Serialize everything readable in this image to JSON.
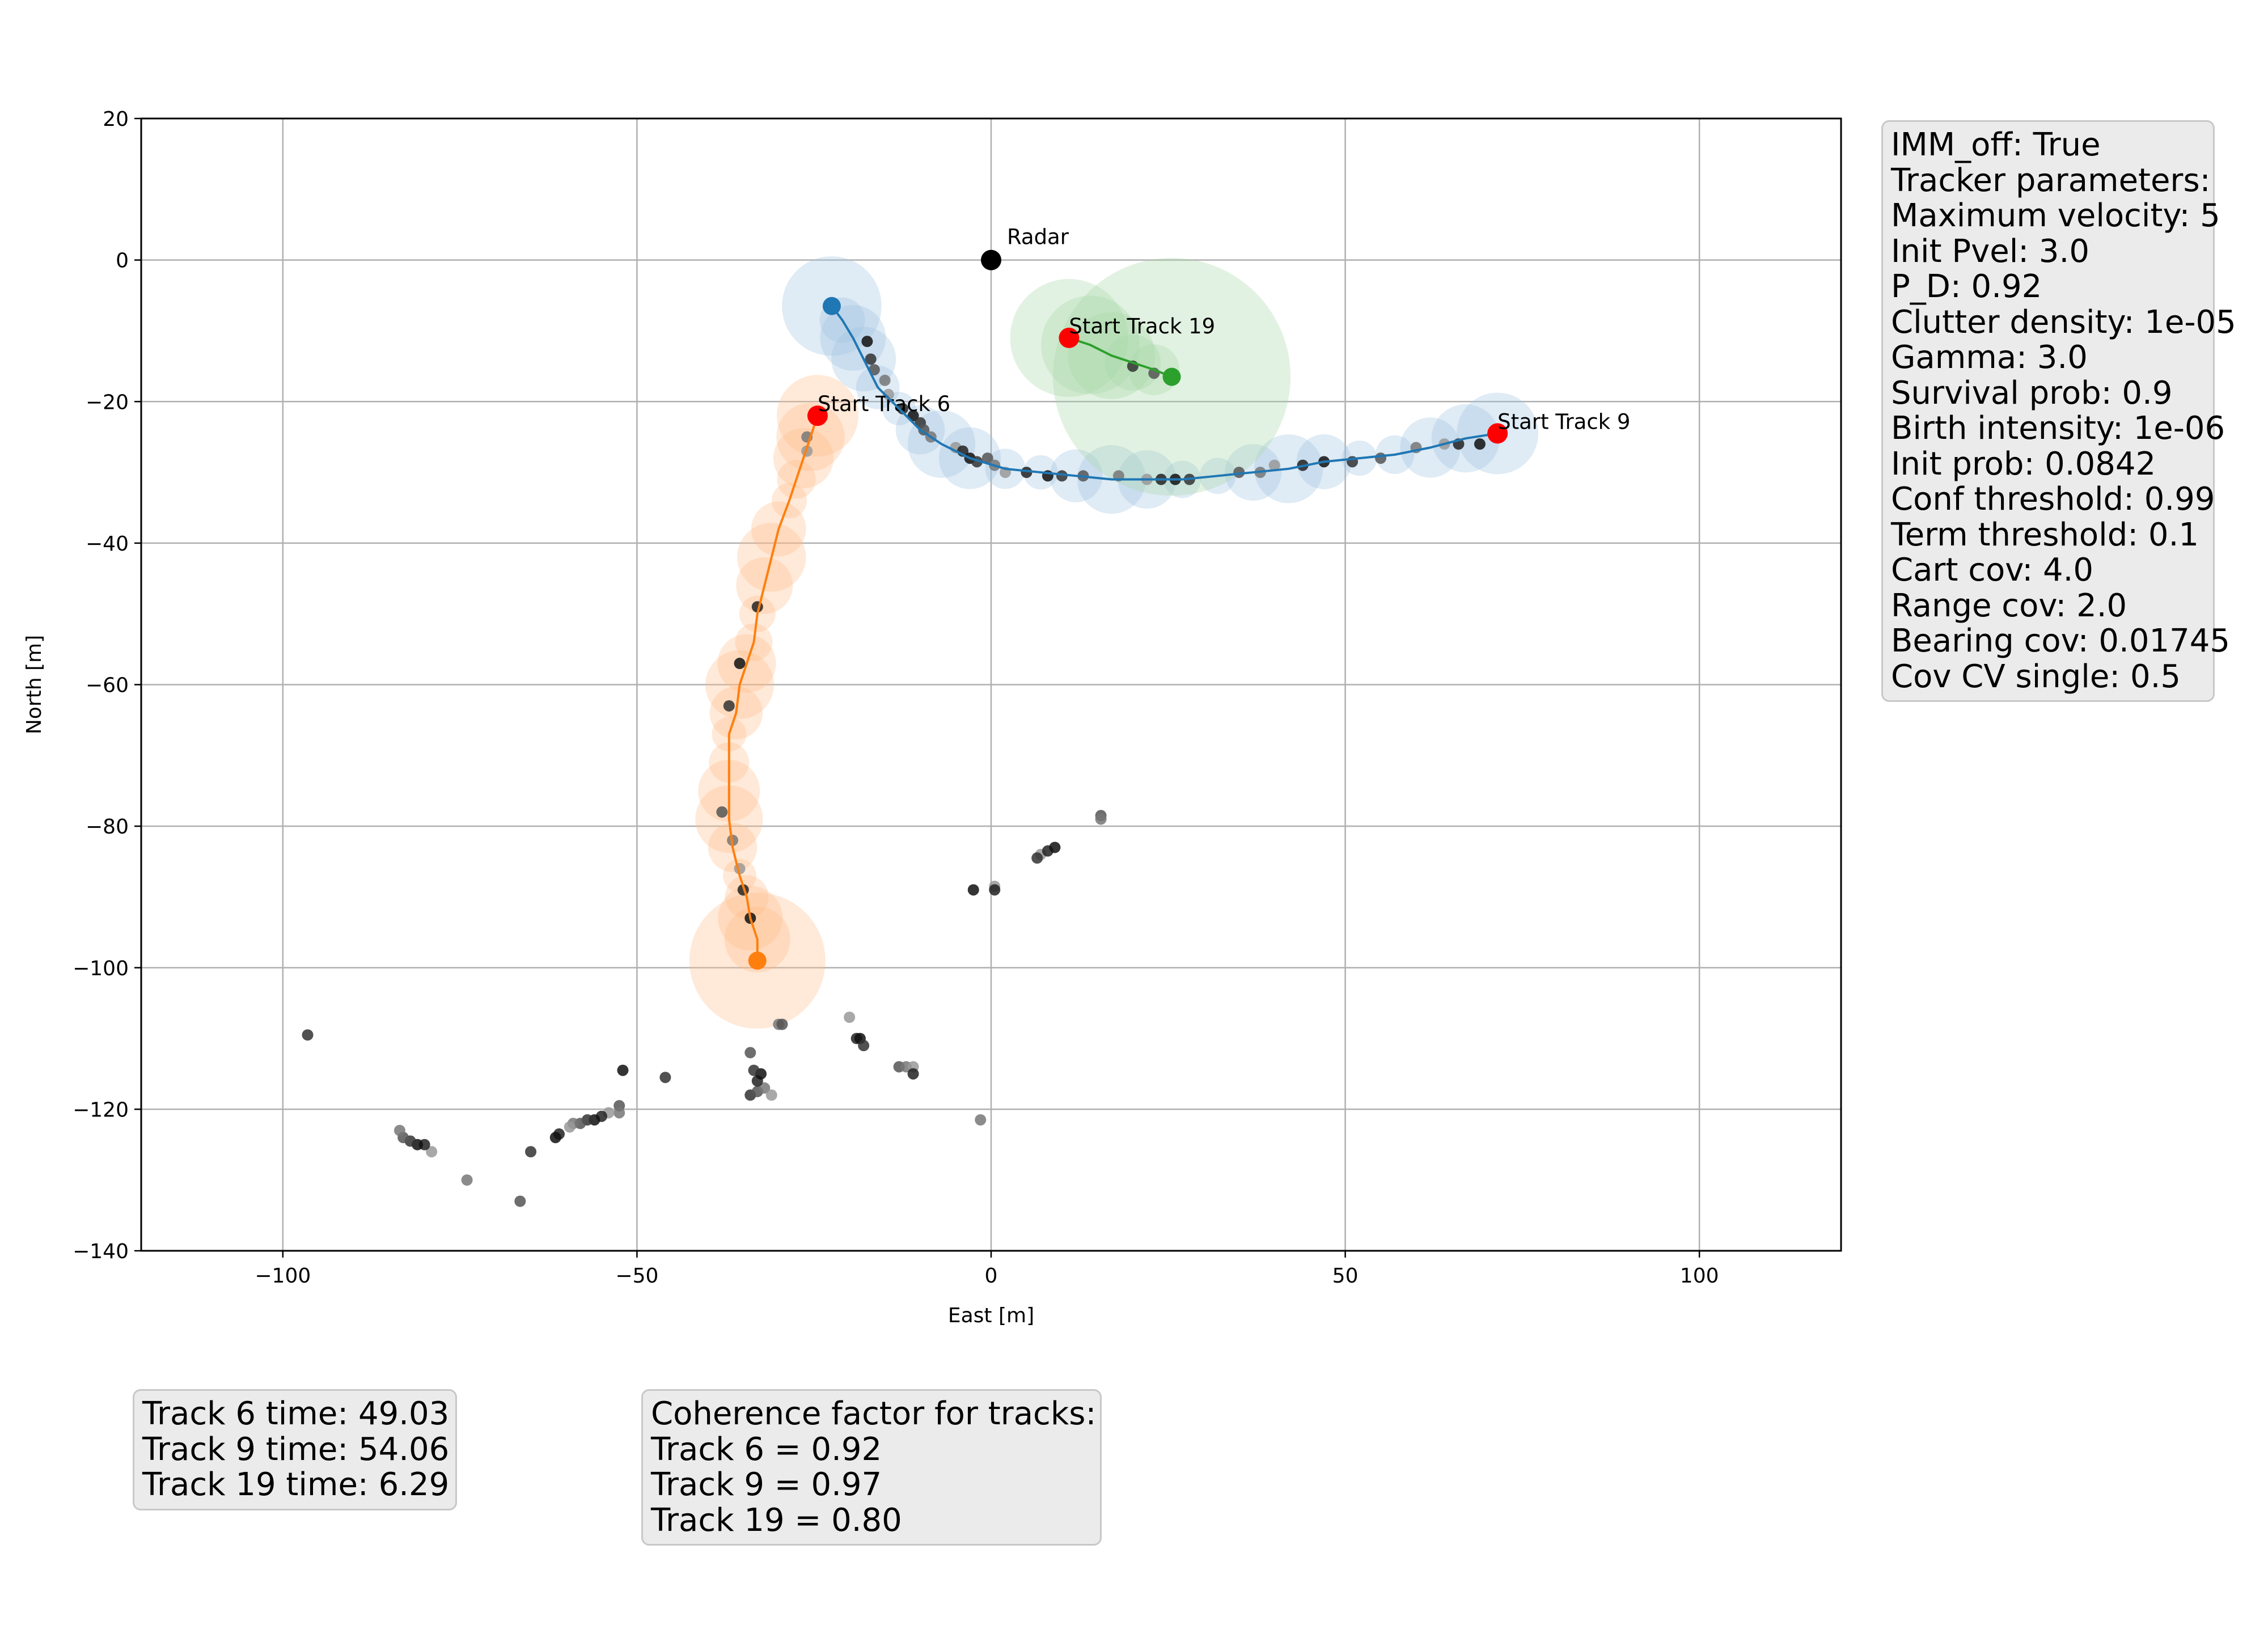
{
  "chart_data": {
    "type": "scatter",
    "title": "",
    "xlabel": "East [m]",
    "ylabel": "North [m]",
    "xlim": [
      -120,
      120
    ],
    "ylim": [
      -140,
      20
    ],
    "xticks": [
      -100,
      -50,
      0,
      50,
      100
    ],
    "yticks": [
      20,
      0,
      -20,
      -40,
      -60,
      -80,
      -100,
      -120,
      -140
    ],
    "xtick_labels": [
      "−100",
      "−50",
      "0",
      "50",
      "100"
    ],
    "ytick_labels": [
      "20",
      "0",
      "−20",
      "−40",
      "−60",
      "−80",
      "−100",
      "−120",
      "−140"
    ],
    "grid": true,
    "radar": {
      "label": "Radar",
      "x": 0,
      "y": 0,
      "color": "#000000"
    },
    "tracks": [
      {
        "id": 6,
        "color": "#ff7f0e",
        "cov_color": "#ffbb88",
        "start_label": "Start Track 6",
        "start": [
          -24.5,
          -22
        ],
        "end": [
          -33,
          -99
        ],
        "path": [
          [
            -24.5,
            -22
          ],
          [
            -25.5,
            -25
          ],
          [
            -26.5,
            -28
          ],
          [
            -27.5,
            -31
          ],
          [
            -28.5,
            -34
          ],
          [
            -30,
            -38
          ],
          [
            -31,
            -42
          ],
          [
            -32,
            -46
          ],
          [
            -33,
            -50
          ],
          [
            -33.5,
            -54
          ],
          [
            -34.5,
            -57
          ],
          [
            -35.5,
            -60
          ],
          [
            -36,
            -64
          ],
          [
            -37,
            -67
          ],
          [
            -37,
            -71
          ],
          [
            -37,
            -75
          ],
          [
            -37,
            -79
          ],
          [
            -36.5,
            -83
          ],
          [
            -35.5,
            -87
          ],
          [
            -34.5,
            -90
          ],
          [
            -34,
            -93
          ],
          [
            -33,
            -96
          ],
          [
            -33,
            -99
          ]
        ]
      },
      {
        "id": 9,
        "color": "#1f77b4",
        "cov_color": "#9fc3e0",
        "start_label": "Start Track 9",
        "start": [
          71.5,
          -24.5
        ],
        "end": [
          -22.5,
          -6.5
        ],
        "path": [
          [
            71.5,
            -24.5
          ],
          [
            67,
            -25.2
          ],
          [
            62,
            -26.5
          ],
          [
            57,
            -27.5
          ],
          [
            52,
            -28
          ],
          [
            47,
            -28.5
          ],
          [
            42,
            -29.5
          ],
          [
            37,
            -30
          ],
          [
            32,
            -30.5
          ],
          [
            27,
            -31
          ],
          [
            22,
            -31
          ],
          [
            17,
            -31
          ],
          [
            12,
            -30.5
          ],
          [
            7,
            -30
          ],
          [
            2,
            -29.5
          ],
          [
            -3,
            -28
          ],
          [
            -7,
            -26
          ],
          [
            -10,
            -24
          ],
          [
            -13,
            -21
          ],
          [
            -16,
            -18
          ],
          [
            -18,
            -14
          ],
          [
            -19.5,
            -11
          ],
          [
            -21,
            -8.5
          ],
          [
            -22.5,
            -6.5
          ]
        ]
      },
      {
        "id": 19,
        "color": "#2ca02c",
        "cov_color": "#a8d8a8",
        "start_label": "Start Track 19",
        "start": [
          11,
          -11
        ],
        "end": [
          25.5,
          -16.5
        ],
        "path": [
          [
            11,
            -11
          ],
          [
            14,
            -12
          ],
          [
            17,
            -13.5
          ],
          [
            20,
            -14.5
          ],
          [
            23,
            -15.5
          ],
          [
            25.5,
            -16.5
          ]
        ]
      }
    ],
    "measurements": [
      [
        -17.5,
        -11.5
      ],
      [
        -17,
        -14
      ],
      [
        -16.5,
        -15.5
      ],
      [
        -15,
        -17
      ],
      [
        -14.5,
        -19
      ],
      [
        -12.5,
        -21
      ],
      [
        -11,
        -22
      ],
      [
        -10,
        -23
      ],
      [
        -9.5,
        -24
      ],
      [
        -8.5,
        -25
      ],
      [
        -5,
        -26.5
      ],
      [
        -4,
        -27
      ],
      [
        -3,
        -28
      ],
      [
        -2,
        -28.5
      ],
      [
        -0.5,
        -28
      ],
      [
        0.5,
        -29
      ],
      [
        2,
        -30
      ],
      [
        5,
        -30
      ],
      [
        8,
        -30.5
      ],
      [
        10,
        -30.5
      ],
      [
        13,
        -30.5
      ],
      [
        18,
        -30.5
      ],
      [
        22,
        -31
      ],
      [
        24,
        -31
      ],
      [
        26,
        -31
      ],
      [
        28,
        -31
      ],
      [
        35,
        -30
      ],
      [
        38,
        -30
      ],
      [
        40,
        -29
      ],
      [
        44,
        -29
      ],
      [
        47,
        -28.5
      ],
      [
        51,
        -28.5
      ],
      [
        55,
        -28
      ],
      [
        60,
        -26.5
      ],
      [
        64,
        -26
      ],
      [
        66,
        -26
      ],
      [
        69,
        -26
      ],
      [
        20,
        -15
      ],
      [
        23,
        -16
      ],
      [
        -26,
        -25
      ],
      [
        -26,
        -27
      ],
      [
        -33,
        -49
      ],
      [
        -35.5,
        -57
      ],
      [
        -37,
        -63
      ],
      [
        -38,
        -78
      ],
      [
        -36.5,
        -82
      ],
      [
        -35.5,
        -86
      ],
      [
        -35,
        -89
      ],
      [
        -34,
        -93
      ],
      [
        -34,
        -118
      ],
      [
        -33,
        -117.5
      ],
      [
        -32,
        -117
      ],
      [
        -31,
        -118
      ],
      [
        -33,
        -116
      ],
      [
        -32.5,
        -115
      ],
      [
        -33.5,
        -114.5
      ],
      [
        -34,
        -112
      ],
      [
        -30,
        -108
      ],
      [
        -20,
        -107
      ],
      [
        -19,
        -110
      ],
      [
        -18.5,
        -110
      ],
      [
        -18,
        -111
      ],
      [
        -13,
        -114
      ],
      [
        -12,
        -114
      ],
      [
        -11,
        -114
      ],
      [
        -11,
        -115
      ],
      [
        -52,
        -114.5
      ],
      [
        -46,
        -115.5
      ],
      [
        -52.5,
        -119.5
      ],
      [
        -52.5,
        -120.5
      ],
      [
        -54,
        -120.5
      ],
      [
        -55,
        -121
      ],
      [
        -56,
        -121.5
      ],
      [
        -57,
        -121.5
      ],
      [
        -58,
        -122
      ],
      [
        -59,
        -122
      ],
      [
        -59.5,
        -122.5
      ],
      [
        -61,
        -123.5
      ],
      [
        -61.5,
        -124
      ],
      [
        -65,
        -126
      ],
      [
        -66.5,
        -133
      ],
      [
        -74,
        -130
      ],
      [
        -79,
        -126
      ],
      [
        -80,
        -125
      ],
      [
        -81,
        -125
      ],
      [
        -82,
        -124.5
      ],
      [
        -83,
        -124
      ],
      [
        -83.5,
        -123
      ],
      [
        7,
        -84
      ],
      [
        8,
        -83.5
      ],
      [
        9,
        -83
      ],
      [
        6.5,
        -84.5
      ],
      [
        15.5,
        -78.5
      ],
      [
        15.5,
        -79
      ],
      [
        0.5,
        -88.5
      ],
      [
        0.5,
        -89
      ],
      [
        -2.5,
        -89
      ],
      [
        -96.5,
        -109.5
      ],
      [
        -29.5,
        -108
      ],
      [
        -1.5,
        -121.5
      ]
    ]
  },
  "param_box": {
    "lines": [
      "IMM_off: True",
      "Tracker parameters:",
      "Maximum velocity: 5",
      "Init Pvel: 3.0",
      "P_D: 0.92",
      "Clutter density: 1e-05",
      "Gamma: 3.0",
      "Survival prob: 0.9",
      "Birth intensity: 1e-06",
      "Init prob: 0.0842",
      "Conf threshold: 0.99",
      "Term threshold: 0.1",
      "Cart cov: 4.0",
      "Range cov: 2.0",
      "Bearing cov: 0.01745",
      "Cov CV single: 0.5"
    ]
  },
  "time_box": {
    "lines": [
      "Track 6 time: 49.03",
      "Track 9 time: 54.06",
      "Track 19 time: 6.29"
    ]
  },
  "coherence_box": {
    "lines": [
      "Coherence factor for tracks:",
      "Track 6 = 0.92",
      "Track 9 = 0.97",
      "Track 19 = 0.80"
    ]
  }
}
